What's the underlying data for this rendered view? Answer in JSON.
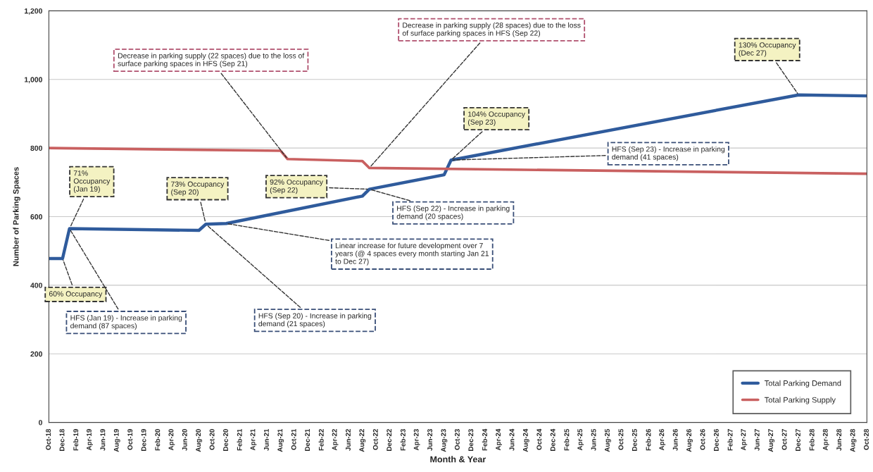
{
  "chart_data": {
    "type": "line",
    "xlabel": "Month & Year",
    "ylabel": "Number of Parking Spaces",
    "series": [
      {
        "name": "Total Parking Demand",
        "color": "#2f5b9c",
        "x": [
          "2018-10",
          "2018-12",
          "2019-01",
          "2020-08",
          "2020-09",
          "2020-12",
          "2022-08",
          "2022-09",
          "2023-08",
          "2023-09",
          "2027-12",
          "2028-10"
        ],
        "values": [
          478,
          478,
          565,
          560,
          578,
          580,
          660,
          680,
          722,
          765,
          955,
          952
        ]
      },
      {
        "name": "Total Parking Supply",
        "color": "#c96060",
        "x": [
          "2018-10",
          "2021-08",
          "2021-09",
          "2022-08",
          "2022-09",
          "2028-10"
        ],
        "values": [
          800,
          792,
          768,
          762,
          742,
          725
        ]
      }
    ],
    "xlim": [
      "2018-10",
      "2028-10"
    ],
    "xticks": [
      {
        "value": "2018-10",
        "label": "Oct-18"
      },
      {
        "value": "2018-12",
        "label": "Dec-18"
      },
      {
        "value": "2019-02",
        "label": "Feb-19"
      },
      {
        "value": "2019-04",
        "label": "Apr-19"
      },
      {
        "value": "2019-06",
        "label": "Jun-19"
      },
      {
        "value": "2019-08",
        "label": "Aug-19"
      },
      {
        "value": "2019-10",
        "label": "Oct-19"
      },
      {
        "value": "2019-12",
        "label": "Dec-19"
      },
      {
        "value": "2020-02",
        "label": "Feb-20"
      },
      {
        "value": "2020-04",
        "label": "Apr-20"
      },
      {
        "value": "2020-06",
        "label": "Jun-20"
      },
      {
        "value": "2020-08",
        "label": "Aug-20"
      },
      {
        "value": "2020-10",
        "label": "Oct-20"
      },
      {
        "value": "2020-12",
        "label": "Dec-20"
      },
      {
        "value": "2021-02",
        "label": "Feb-21"
      },
      {
        "value": "2021-04",
        "label": "Apr-21"
      },
      {
        "value": "2021-06",
        "label": "Jun-21"
      },
      {
        "value": "2021-08",
        "label": "Aug-21"
      },
      {
        "value": "2021-10",
        "label": "Oct-21"
      },
      {
        "value": "2021-12",
        "label": "Dec-21"
      },
      {
        "value": "2022-02",
        "label": "Feb-22"
      },
      {
        "value": "2022-04",
        "label": "Apr-22"
      },
      {
        "value": "2022-06",
        "label": "Jun-22"
      },
      {
        "value": "2022-08",
        "label": "Aug-22"
      },
      {
        "value": "2022-10",
        "label": "Oct-22"
      },
      {
        "value": "2022-12",
        "label": "Dec-22"
      },
      {
        "value": "2023-02",
        "label": "Feb-23"
      },
      {
        "value": "2023-04",
        "label": "Apr-23"
      },
      {
        "value": "2023-06",
        "label": "Jun-23"
      },
      {
        "value": "2023-08",
        "label": "Aug-23"
      },
      {
        "value": "2023-10",
        "label": "Oct-23"
      },
      {
        "value": "2023-12",
        "label": "Dec-23"
      },
      {
        "value": "2024-02",
        "label": "Feb-24"
      },
      {
        "value": "2024-04",
        "label": "Apr-24"
      },
      {
        "value": "2024-06",
        "label": "Jun-24"
      },
      {
        "value": "2024-08",
        "label": "Aug-24"
      },
      {
        "value": "2024-10",
        "label": "Oct-24"
      },
      {
        "value": "2024-12",
        "label": "Dec-24"
      },
      {
        "value": "2025-02",
        "label": "Feb-25"
      },
      {
        "value": "2025-04",
        "label": "Apr-25"
      },
      {
        "value": "2025-06",
        "label": "Jun-25"
      },
      {
        "value": "2025-08",
        "label": "Aug-25"
      },
      {
        "value": "2025-10",
        "label": "Oct-25"
      },
      {
        "value": "2025-12",
        "label": "Dec-25"
      },
      {
        "value": "2026-02",
        "label": "Feb-26"
      },
      {
        "value": "2026-04",
        "label": "Apr-26"
      },
      {
        "value": "2026-06",
        "label": "Jun-26"
      },
      {
        "value": "2026-08",
        "label": "Aug-26"
      },
      {
        "value": "2026-10",
        "label": "Oct-26"
      },
      {
        "value": "2026-12",
        "label": "Dec-26"
      },
      {
        "value": "2027-02",
        "label": "Feb-27"
      },
      {
        "value": "2027-04",
        "label": "Apr-27"
      },
      {
        "value": "2027-06",
        "label": "Jun-27"
      },
      {
        "value": "2027-08",
        "label": "Aug-27"
      },
      {
        "value": "2027-10",
        "label": "Oct-27"
      },
      {
        "value": "2027-12",
        "label": "Dec-27"
      },
      {
        "value": "2028-02",
        "label": "Feb-28"
      },
      {
        "value": "2028-04",
        "label": "Apr-28"
      },
      {
        "value": "2028-06",
        "label": "Jun-28"
      },
      {
        "value": "2028-08",
        "label": "Aug-28"
      },
      {
        "value": "2028-10",
        "label": "Oct-28"
      }
    ],
    "ylim": [
      0,
      1200
    ],
    "yticks": [
      0,
      200,
      400,
      600,
      800,
      {
        "value": 1000,
        "label": "1,000"
      },
      {
        "value": 1200,
        "label": "1,200"
      }
    ],
    "grid": "y",
    "legend": "bottom right",
    "marker": "none",
    "line_style": "solid",
    "annotations": [
      {
        "text": "60% Occupancy",
        "x": "2018-12",
        "y": 478
      },
      {
        "text": "71%\nOccupancy\n(Jan 19)",
        "x": "2019-01",
        "y": 565
      },
      {
        "text": "HFS (Jan 19) - Increase in parking\ndemand (87 spaces)",
        "x": "2019-01",
        "y": 565
      },
      {
        "text": "73% Occupancy\n(Sep 20)",
        "x": "2020-09",
        "y": 578
      },
      {
        "text": "HFS (Sep 20) - Increase in parking\ndemand (21 spaces)",
        "x": "2020-09",
        "y": 578
      },
      {
        "text": "Linear increase for future development over 7\nyears (@ 4 spaces every month starting Jan 21\nto Dec 27)",
        "x": "2020-12",
        "y": 580
      },
      {
        "text": "Decrease in parking supply (22 spaces) due to the loss of\nsurface parking spaces in HFS (Sep 21)",
        "x": "2021-09",
        "y": 768
      },
      {
        "text": "92% Occupancy\n(Sep 22)",
        "x": "2022-09",
        "y": 680
      },
      {
        "text": "HFS (Sep 22) - Increase in parking\ndemand (20 spaces)",
        "x": "2022-09",
        "y": 680
      },
      {
        "text": "Decrease in parking supply (28 spaces) due to the loss\nof surface parking spaces in HFS (Sep 22)",
        "x": "2022-09",
        "y": 742
      },
      {
        "text": "104% Occupancy\n(Sep 23)",
        "x": "2023-09",
        "y": 765
      },
      {
        "text": "HFS (Sep 23) - Increase in parking\ndemand (41 spaces)",
        "x": "2023-09",
        "y": 765
      },
      {
        "text": "130% Occupancy\n(Dec 27)",
        "x": "2027-12",
        "y": 955
      }
    ]
  }
}
